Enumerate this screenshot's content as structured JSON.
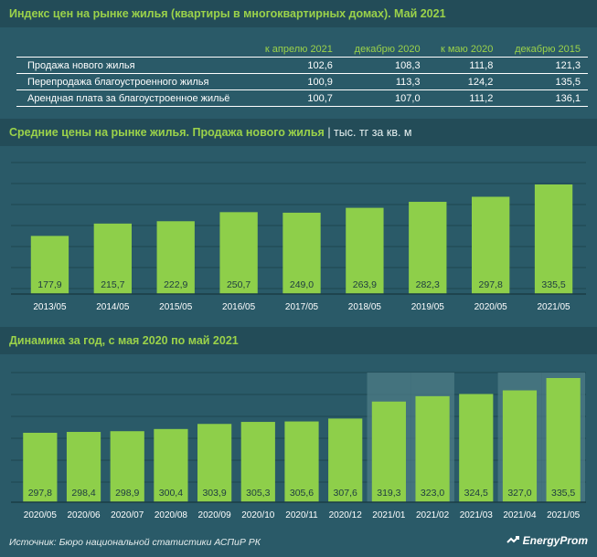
{
  "header": {
    "title": "Индекс цен на рынке жилья (квартиры в многоквартирных домах). Май 2021"
  },
  "index_table": {
    "columns": [
      "к апрелю 2021",
      "декабрю 2020",
      "к маю 2020",
      "декабрю 2015"
    ],
    "rows": [
      {
        "name": "Продажа нового жилья",
        "values": [
          "102,6",
          "108,3",
          "111,8",
          "121,3"
        ]
      },
      {
        "name": "Перепродажа благоустроенного жилья",
        "values": [
          "100,9",
          "113,3",
          "124,2",
          "135,5"
        ]
      },
      {
        "name": "Арендная плата за благоустроенное жильё",
        "values": [
          "100,7",
          "107,0",
          "111,2",
          "136,1"
        ]
      }
    ]
  },
  "chart1_heading": {
    "title": "Средние цены на рынке жилья. Продажа нового жилья",
    "unit": " | тыс. тг за кв. м"
  },
  "chart2_heading": {
    "title": "Динамика за год, с мая 2020 по май 2021"
  },
  "footer": {
    "source": "Источник: Бюро национальной статистики АСПиР РК",
    "logo": "EnergyProm"
  },
  "colors": {
    "bar": "#8ecf4a",
    "bar_border": "#2a5a68",
    "highlight": "#4d7c86",
    "gridline": "#1f4650",
    "text": "#ffffff",
    "accent": "#9bd24a"
  },
  "chart_data": [
    {
      "type": "bar",
      "title": "Средние цены на рынке жилья. Продажа нового жилья",
      "ylabel": "тыс. тг за кв. м",
      "categories": [
        "2013/05",
        "2014/05",
        "2015/05",
        "2016/05",
        "2017/05",
        "2018/05",
        "2019/05",
        "2020/05",
        "2021/05"
      ],
      "values": [
        177.9,
        215.7,
        222.9,
        250.7,
        249.0,
        263.9,
        282.3,
        297.8,
        335.5
      ],
      "labels": [
        "177,9",
        "215,7",
        "222,9",
        "250,7",
        "249,0",
        "263,9",
        "282,3",
        "297,8",
        "335,5"
      ],
      "grid": true
    },
    {
      "type": "bar",
      "title": "Динамика за год, с мая 2020 по май 2021",
      "categories": [
        "2020/05",
        "2020/06",
        "2020/07",
        "2020/08",
        "2020/09",
        "2020/10",
        "2020/11",
        "2020/12",
        "2021/01",
        "2021/02",
        "2021/03",
        "2021/04",
        "2021/05"
      ],
      "values": [
        297.8,
        298.4,
        298.9,
        300.4,
        303.9,
        305.3,
        305.6,
        307.6,
        319.3,
        323.0,
        324.5,
        327.0,
        335.5
      ],
      "labels": [
        "297,8",
        "298,4",
        "298,9",
        "300,4",
        "303,9",
        "305,3",
        "305,6",
        "307,6",
        "319,3",
        "323,0",
        "324,5",
        "327,0",
        "335,5"
      ],
      "highlighted": [
        "2021/01",
        "2021/02",
        "2021/04",
        "2021/05"
      ],
      "grid": true
    }
  ]
}
